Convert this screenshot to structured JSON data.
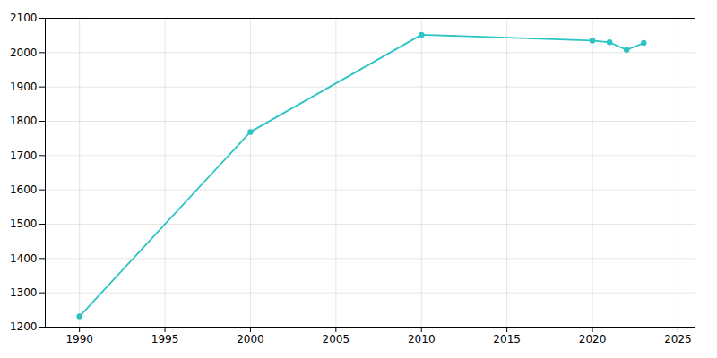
{
  "chart_data": {
    "type": "line",
    "x": [
      1990,
      2000,
      2010,
      2020,
      2021,
      2022,
      2023
    ],
    "values": [
      1231,
      1769,
      2052,
      2035,
      2030,
      2008,
      2028
    ],
    "color": "#2EC4C4",
    "marker": "circle",
    "xlim": [
      1988,
      2026
    ],
    "ylim": [
      1200,
      2100
    ],
    "xticks": [
      1990,
      1995,
      2000,
      2005,
      2010,
      2015,
      2020,
      2025
    ],
    "yticks": [
      1200,
      1300,
      1400,
      1500,
      1600,
      1700,
      1800,
      1900,
      2000,
      2100
    ],
    "grid": true
  }
}
